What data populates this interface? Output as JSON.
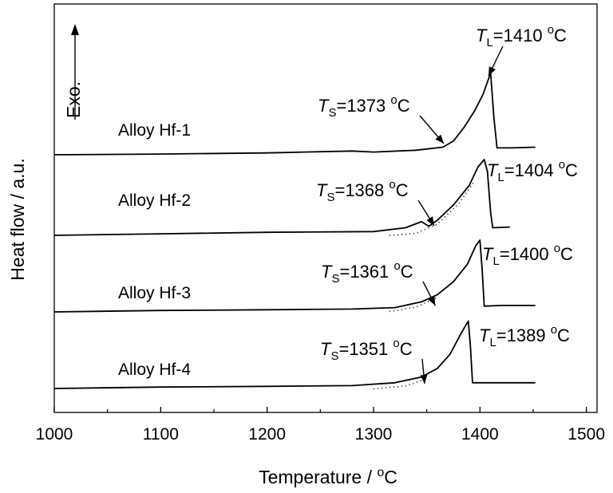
{
  "chart_data": {
    "type": "line",
    "title": "",
    "xlabel": "Temperature / °C",
    "ylabel": "Heat flow / a.u.",
    "xlim": [
      1000,
      1510
    ],
    "x_ticks": [
      1000,
      1100,
      1200,
      1300,
      1400,
      1500
    ],
    "y_ticks_shown": false,
    "grid": false,
    "exo_label": "Exo.",
    "series": [
      {
        "name": "Alloy Hf-1",
        "baseline": 0.0,
        "points": [
          [
            1000,
            0.0
          ],
          [
            1100,
            0.05
          ],
          [
            1200,
            0.12
          ],
          [
            1280,
            0.25
          ],
          [
            1300,
            0.18
          ],
          [
            1340,
            0.3
          ],
          [
            1365,
            0.5
          ],
          [
            1375,
            0.9
          ],
          [
            1385,
            1.8
          ],
          [
            1395,
            2.9
          ],
          [
            1403,
            4.0
          ],
          [
            1410,
            5.4
          ],
          [
            1413,
            2.5
          ],
          [
            1416,
            0.45
          ],
          [
            1430,
            0.45
          ],
          [
            1452,
            0.5
          ]
        ],
        "solidus": {
          "prefix": "T",
          "sub": "S",
          "value": "=1373",
          "sup": "o",
          "unit": "C",
          "x": 1373
        },
        "liquidus": {
          "prefix": "T",
          "sub": "L",
          "value": "=1410",
          "sup": "o",
          "unit": "C",
          "x": 1410
        }
      },
      {
        "name": "Alloy Hf-2",
        "baseline": 0.0,
        "points": [
          [
            1000,
            0.0
          ],
          [
            1100,
            0.1
          ],
          [
            1200,
            0.2
          ],
          [
            1300,
            0.25
          ],
          [
            1330,
            0.5
          ],
          [
            1345,
            0.9
          ],
          [
            1352,
            0.6
          ],
          [
            1360,
            1.0
          ],
          [
            1375,
            2.0
          ],
          [
            1390,
            3.3
          ],
          [
            1398,
            4.5
          ],
          [
            1404,
            5.0
          ],
          [
            1407,
            4.2
          ],
          [
            1410,
            1.5
          ],
          [
            1412,
            0.5
          ],
          [
            1428,
            0.55
          ]
        ],
        "dotted_extrapolation": [
          [
            1315,
            0.2
          ],
          [
            1340,
            0.35
          ],
          [
            1360,
            0.95
          ],
          [
            1380,
            2.3
          ],
          [
            1395,
            3.8
          ]
        ],
        "solidus": {
          "prefix": "T",
          "sub": "S",
          "value": "=1368",
          "sup": "o",
          "unit": "C",
          "x": 1368
        },
        "liquidus": {
          "prefix": "T",
          "sub": "L",
          "value": "=1404",
          "sup": "o",
          "unit": "C",
          "x": 1404
        }
      },
      {
        "name": "Alloy Hf-3",
        "baseline": 0.0,
        "points": [
          [
            1000,
            0.0
          ],
          [
            1100,
            0.1
          ],
          [
            1200,
            0.15
          ],
          [
            1280,
            0.2
          ],
          [
            1320,
            0.3
          ],
          [
            1345,
            0.7
          ],
          [
            1360,
            1.2
          ],
          [
            1375,
            2.1
          ],
          [
            1388,
            3.3
          ],
          [
            1396,
            4.6
          ],
          [
            1400,
            5.0
          ],
          [
            1402,
            3.0
          ],
          [
            1404,
            0.4
          ],
          [
            1420,
            0.45
          ],
          [
            1452,
            0.45
          ]
        ],
        "dotted_extrapolation": [
          [
            1315,
            0.25
          ],
          [
            1340,
            0.55
          ],
          [
            1360,
            1.25
          ]
        ],
        "solidus": {
          "prefix": "T",
          "sub": "S",
          "value": "=1361",
          "sup": "o",
          "unit": "C",
          "x": 1361
        },
        "liquidus": {
          "prefix": "T",
          "sub": "L",
          "value": "=1400",
          "sup": "o",
          "unit": "C",
          "x": 1400
        }
      },
      {
        "name": "Alloy Hf-4",
        "baseline": 0.0,
        "points": [
          [
            1000,
            0.0
          ],
          [
            1100,
            0.1
          ],
          [
            1200,
            0.15
          ],
          [
            1280,
            0.2
          ],
          [
            1320,
            0.4
          ],
          [
            1345,
            0.8
          ],
          [
            1360,
            1.4
          ],
          [
            1372,
            2.4
          ],
          [
            1382,
            3.8
          ],
          [
            1389,
            4.7
          ],
          [
            1391,
            3.0
          ],
          [
            1393,
            0.4
          ],
          [
            1410,
            0.4
          ],
          [
            1452,
            0.4
          ]
        ],
        "dotted_extrapolation": [
          [
            1300,
            0.2
          ],
          [
            1330,
            0.4
          ],
          [
            1350,
            0.9
          ]
        ],
        "solidus": {
          "prefix": "T",
          "sub": "S",
          "value": "=1351",
          "sup": "o",
          "unit": "C",
          "x": 1351
        },
        "liquidus": {
          "prefix": "T",
          "sub": "L",
          "value": "=1389",
          "sup": "o",
          "unit": "C",
          "x": 1389
        }
      }
    ]
  }
}
